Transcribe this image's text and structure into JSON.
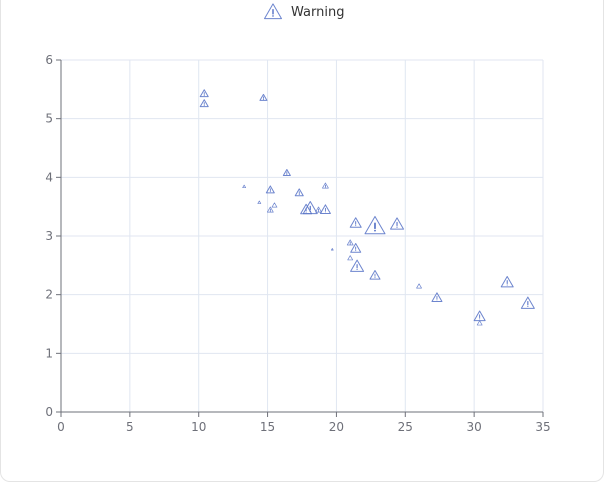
{
  "chart_data": {
    "type": "scatter",
    "title": "",
    "xlabel": "",
    "ylabel": "",
    "xlim": [
      0,
      35
    ],
    "ylim": [
      0,
      6
    ],
    "x_ticks": [
      "0",
      "5",
      "10",
      "15",
      "20",
      "25",
      "30",
      "35"
    ],
    "y_ticks": [
      "0",
      "1",
      "2",
      "3",
      "4",
      "5",
      "6"
    ],
    "grid": true,
    "legend_position": "top-center",
    "symbol": "triangle-warning",
    "colors": {
      "series": "#5470c6",
      "axis": "#6e7079",
      "grid": "#e0e6f1"
    },
    "series": [
      {
        "name": "Warning",
        "points": [
          {
            "x": 10.4,
            "y": 5.42,
            "size": 8
          },
          {
            "x": 10.4,
            "y": 5.25,
            "size": 8
          },
          {
            "x": 14.7,
            "y": 5.35,
            "size": 7
          },
          {
            "x": 13.3,
            "y": 3.84,
            "size": 3
          },
          {
            "x": 14.4,
            "y": 3.57,
            "size": 3
          },
          {
            "x": 15.2,
            "y": 3.78,
            "size": 8
          },
          {
            "x": 15.2,
            "y": 3.44,
            "size": 6
          },
          {
            "x": 15.5,
            "y": 3.52,
            "size": 5
          },
          {
            "x": 16.4,
            "y": 4.07,
            "size": 7
          },
          {
            "x": 17.3,
            "y": 3.73,
            "size": 8
          },
          {
            "x": 17.8,
            "y": 3.44,
            "size": 11
          },
          {
            "x": 18.1,
            "y": 3.46,
            "size": 14
          },
          {
            "x": 18.7,
            "y": 3.44,
            "size": 6
          },
          {
            "x": 19.2,
            "y": 3.85,
            "size": 6
          },
          {
            "x": 19.2,
            "y": 3.44,
            "size": 10
          },
          {
            "x": 19.7,
            "y": 2.77,
            "size": 2
          },
          {
            "x": 21.0,
            "y": 2.88,
            "size": 6
          },
          {
            "x": 21.0,
            "y": 2.62,
            "size": 5
          },
          {
            "x": 21.4,
            "y": 3.21,
            "size": 11
          },
          {
            "x": 21.4,
            "y": 2.78,
            "size": 10
          },
          {
            "x": 21.5,
            "y": 2.47,
            "size": 13
          },
          {
            "x": 22.8,
            "y": 3.15,
            "size": 20
          },
          {
            "x": 22.8,
            "y": 2.32,
            "size": 10
          },
          {
            "x": 24.4,
            "y": 3.19,
            "size": 13
          },
          {
            "x": 26.0,
            "y": 2.14,
            "size": 5
          },
          {
            "x": 27.3,
            "y": 1.94,
            "size": 10
          },
          {
            "x": 30.4,
            "y": 1.62,
            "size": 11
          },
          {
            "x": 30.4,
            "y": 1.51,
            "size": 5
          },
          {
            "x": 32.4,
            "y": 2.2,
            "size": 12
          },
          {
            "x": 33.9,
            "y": 1.84,
            "size": 13
          }
        ]
      }
    ]
  }
}
